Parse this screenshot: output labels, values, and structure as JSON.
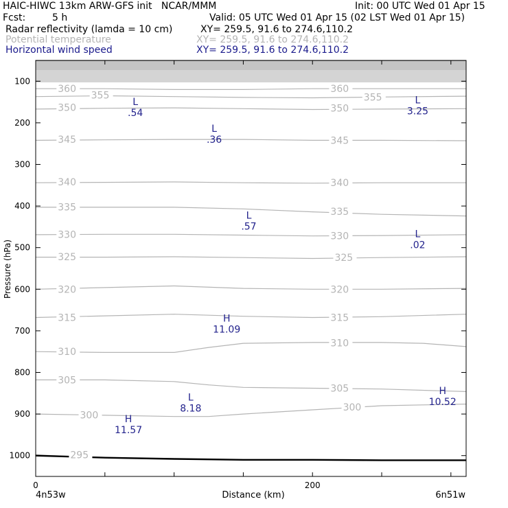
{
  "header": {
    "title": "HAIC-HIWC 13km ARW-GFS init   NCAR/MMM",
    "init": "Init: 00 UTC Wed 01 Apr 15",
    "fcst_label": "Fcst:",
    "fcst_value": "5 h",
    "valid": "Valid: 05 UTC Wed 01 Apr 15 (02 LST Wed 01 Apr 15)",
    "fields": [
      {
        "name": "Radar reflectivity (lamda = 10 cm)",
        "xy": "XY= 259.5, 91.6 to 274.6,110.2",
        "color": "#000000"
      },
      {
        "name": "Potential temperature",
        "xy": "XY= 259.5, 91.6 to 274.6,110.2",
        "color": "#b4b4b4"
      },
      {
        "name": "Horizontal wind speed",
        "xy": "XY= 259.5, 91.6 to 274.6,110.2",
        "color": "#1a1a8c"
      }
    ]
  },
  "colors": {
    "theta": "#b4b4b4",
    "wind": "#22228c",
    "terrain": "#000000"
  },
  "chart_data": {
    "type": "line",
    "xlabel": "Distance (km)",
    "ylabel": "Pressure (hPa)",
    "xlim": [
      0,
      311
    ],
    "ylim": [
      1050,
      50
    ],
    "x_ticks": [
      0,
      200
    ],
    "x_minor_step": 50,
    "y_ticks": [
      100,
      200,
      300,
      400,
      500,
      600,
      700,
      800,
      900,
      1000
    ],
    "y_tick_labels": [
      "100",
      "200",
      "300",
      "400",
      "500",
      "600",
      "700",
      "800",
      "900",
      "1000"
    ],
    "x_left_label": "4n53w",
    "x_right_label": "6n51w",
    "theta_series": [
      {
        "name": "360",
        "x": [
          0,
          50,
          100,
          150,
          200,
          250,
          311
        ],
        "y": [
          118,
          118,
          120,
          120,
          118,
          118,
          118
        ]
      },
      {
        "name": "355",
        "x": [
          0,
          50,
          100,
          150,
          200,
          250,
          311
        ],
        "y": [
          137,
          135,
          137,
          139,
          140,
          138,
          136
        ]
      },
      {
        "name": "350",
        "x": [
          0,
          50,
          100,
          150,
          200,
          250,
          311
        ],
        "y": [
          167,
          165,
          164,
          166,
          168,
          167,
          166
        ]
      },
      {
        "name": "345",
        "x": [
          0,
          50,
          100,
          150,
          200,
          250,
          311
        ],
        "y": [
          242,
          241,
          240,
          240,
          242,
          242,
          243
        ]
      },
      {
        "name": "340",
        "x": [
          0,
          50,
          100,
          150,
          200,
          250,
          311
        ],
        "y": [
          344,
          343,
          342,
          344,
          345,
          344,
          344
        ]
      },
      {
        "name": "335",
        "x": [
          0,
          50,
          100,
          150,
          200,
          250,
          311
        ],
        "y": [
          403,
          403,
          403,
          407,
          414,
          420,
          424
        ]
      },
      {
        "name": "330",
        "x": [
          0,
          50,
          100,
          150,
          200,
          250,
          311
        ],
        "y": [
          469,
          468,
          468,
          470,
          472,
          471,
          469
        ]
      },
      {
        "name": "325",
        "x": [
          0,
          50,
          100,
          150,
          200,
          250,
          311
        ],
        "y": [
          523,
          523,
          522,
          524,
          526,
          524,
          522
        ]
      },
      {
        "name": "320",
        "x": [
          0,
          50,
          100,
          150,
          200,
          250,
          311
        ],
        "y": [
          600,
          596,
          592,
          598,
          600,
          600,
          598
        ]
      },
      {
        "name": "315",
        "x": [
          0,
          50,
          100,
          150,
          200,
          250,
          311
        ],
        "y": [
          668,
          664,
          660,
          665,
          668,
          666,
          660
        ]
      },
      {
        "name": "310",
        "x": [
          0,
          50,
          100,
          125,
          150,
          200,
          250,
          280,
          311
        ],
        "y": [
          750,
          752,
          752,
          740,
          730,
          728,
          728,
          730,
          738
        ]
      },
      {
        "name": "305",
        "x": [
          0,
          50,
          100,
          125,
          150,
          200,
          250,
          311
        ],
        "y": [
          818,
          818,
          822,
          830,
          836,
          838,
          840,
          846
        ]
      },
      {
        "name": "300",
        "x": [
          0,
          50,
          100,
          125,
          150,
          200,
          250,
          311
        ],
        "y": [
          900,
          903,
          906,
          906,
          900,
          890,
          880,
          876
        ]
      },
      {
        "name": "295",
        "x": [
          0,
          25,
          50
        ],
        "y": [
          998,
          1002,
          1004
        ]
      }
    ],
    "terrain": {
      "x": [
        0,
        50,
        100,
        150,
        200,
        250,
        311
      ],
      "y": [
        1000,
        1005,
        1008,
        1010,
        1010,
        1011,
        1011
      ]
    },
    "theta_labels": [
      {
        "text": "360",
        "x": 16,
        "p": 118
      },
      {
        "text": "355",
        "x": 40,
        "p": 133
      },
      {
        "text": "350",
        "x": 16,
        "p": 163
      },
      {
        "text": "345",
        "x": 16,
        "p": 240
      },
      {
        "text": "340",
        "x": 16,
        "p": 342
      },
      {
        "text": "335",
        "x": 16,
        "p": 402
      },
      {
        "text": "330",
        "x": 16,
        "p": 468
      },
      {
        "text": "325",
        "x": 16,
        "p": 522
      },
      {
        "text": "320",
        "x": 16,
        "p": 600
      },
      {
        "text": "315",
        "x": 16,
        "p": 668
      },
      {
        "text": "310",
        "x": 16,
        "p": 750
      },
      {
        "text": "305",
        "x": 16,
        "p": 818
      },
      {
        "text": "300",
        "x": 32,
        "p": 902
      },
      {
        "text": "295",
        "x": 25,
        "p": 998
      },
      {
        "text": "360",
        "x": 213,
        "p": 118
      },
      {
        "text": "355",
        "x": 237,
        "p": 138
      },
      {
        "text": "350",
        "x": 213,
        "p": 165
      },
      {
        "text": "345",
        "x": 213,
        "p": 242
      },
      {
        "text": "340",
        "x": 213,
        "p": 344
      },
      {
        "text": "335",
        "x": 213,
        "p": 413
      },
      {
        "text": "330",
        "x": 213,
        "p": 472
      },
      {
        "text": "325",
        "x": 216,
        "p": 524
      },
      {
        "text": "320",
        "x": 213,
        "p": 600
      },
      {
        "text": "315",
        "x": 213,
        "p": 668
      },
      {
        "text": "310",
        "x": 213,
        "p": 729
      },
      {
        "text": "305",
        "x": 213,
        "p": 838
      },
      {
        "text": "300",
        "x": 222,
        "p": 883
      }
    ],
    "wind_extrema": [
      {
        "mark": "L",
        "value": ".54",
        "x": 72,
        "p": 157
      },
      {
        "mark": "L",
        "value": ".36",
        "x": 129,
        "p": 222
      },
      {
        "mark": "L",
        "value": "3.25",
        "x": 276,
        "p": 153
      },
      {
        "mark": "L",
        "value": ".57",
        "x": 154,
        "p": 430
      },
      {
        "mark": "L",
        "value": ".02",
        "x": 276,
        "p": 475
      },
      {
        "mark": "H",
        "value": "11.09",
        "x": 138,
        "p": 678
      },
      {
        "mark": "H",
        "value": "10.52",
        "x": 294,
        "p": 852
      },
      {
        "mark": "L",
        "value": "8.18",
        "x": 112,
        "p": 868
      },
      {
        "mark": "H",
        "value": "11.57",
        "x": 67,
        "p": 920
      }
    ]
  }
}
